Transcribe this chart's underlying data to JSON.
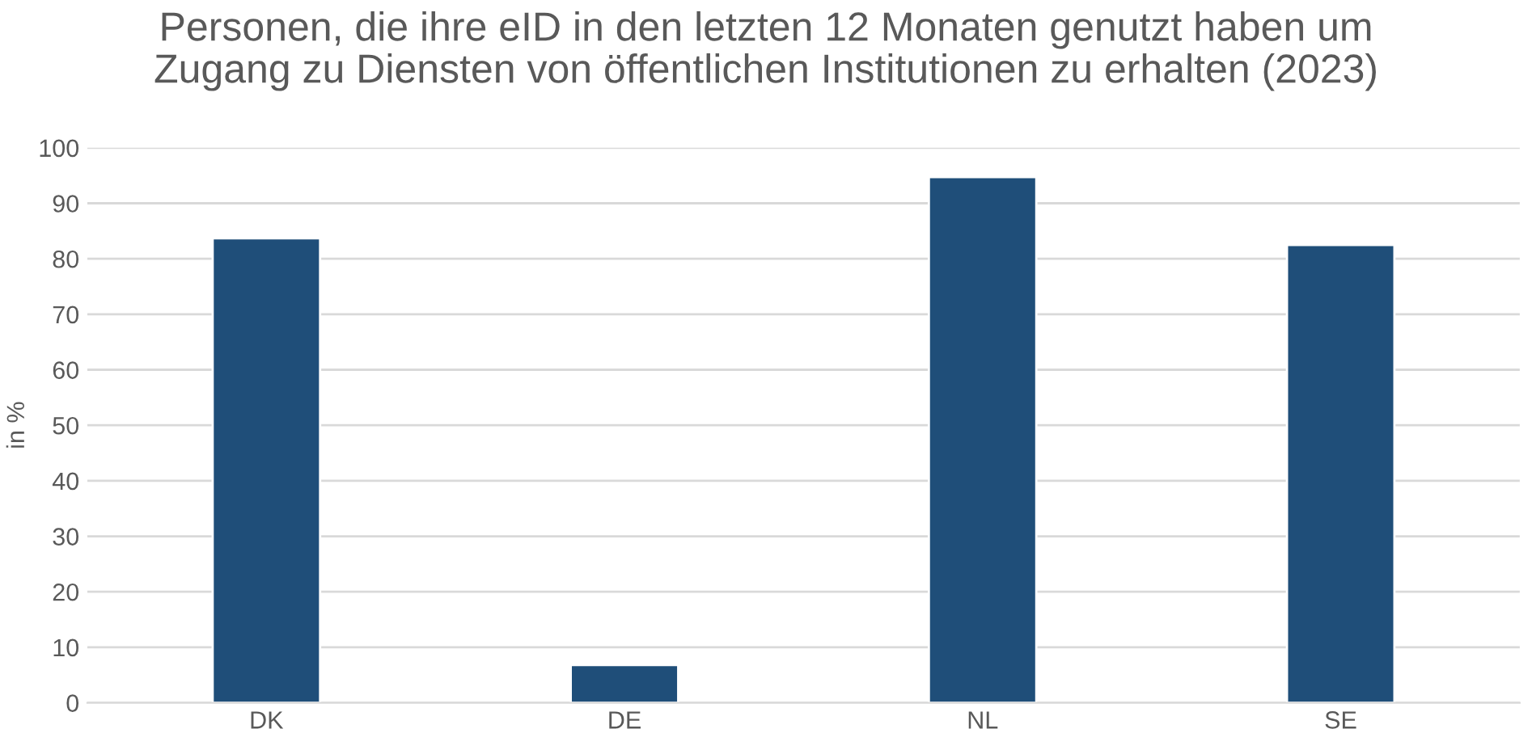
{
  "chart_data": {
    "type": "bar",
    "title": "Personen, die ihre eID in den letzten 12 Monaten genutzt haben um\nZugang zu Diensten von öffentlichen Institutionen zu erhalten (2023)",
    "ylabel": "in %",
    "categories": [
      "DK",
      "DE",
      "NL",
      "SE"
    ],
    "values": [
      83.7,
      6.8,
      94.7,
      82.5
    ],
    "color": "#1f4e79",
    "ylim": [
      0,
      100
    ],
    "yticks": [
      0,
      10,
      20,
      30,
      40,
      50,
      60,
      70,
      80,
      90,
      100
    ],
    "grid": "y"
  }
}
